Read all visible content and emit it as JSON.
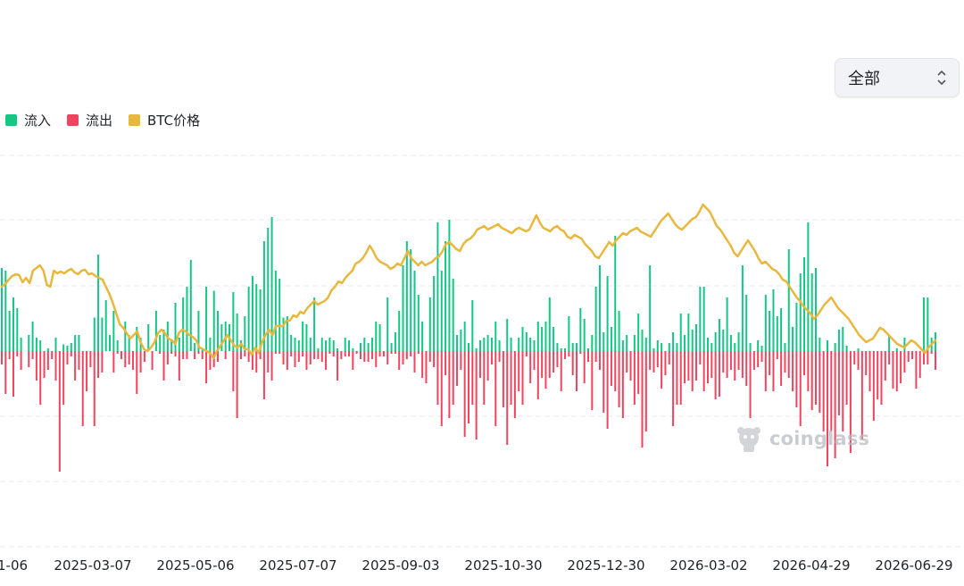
{
  "selector": {
    "value": "全部"
  },
  "legend": [
    {
      "label": "流入",
      "color": "#14c784"
    },
    {
      "label": "流出",
      "color": "#f0455f"
    },
    {
      "label": "BTC价格",
      "color": "#e8b73d"
    }
  ],
  "watermark": {
    "text": "coinglass"
  },
  "colors": {
    "inflow": "#14c784",
    "outflow": "#f0455f",
    "price": "#e8b73d",
    "grid": "#e6e8eb"
  },
  "chart_data": {
    "type": "bar",
    "grid": true,
    "legend_position": "top-left",
    "x_tick_labels": [
      "1-06",
      "2025-03-07",
      "2025-05-06",
      "2025-07-07",
      "2025-09-03",
      "2025-10-30",
      "2025-12-30",
      "2026-03-02",
      "2026-04-29",
      "2026-06-29"
    ],
    "series": [
      {
        "name": "流入",
        "kind": "bar",
        "values": [
          62,
          60,
          30,
          40,
          32,
          10,
          0,
          12,
          22,
          10,
          8,
          0,
          2,
          0,
          10,
          0,
          5,
          4,
          6,
          12,
          12,
          0,
          0,
          0,
          25,
          72,
          25,
          38,
          12,
          30,
          8,
          0,
          22,
          12,
          0,
          18,
          10,
          0,
          20,
          0,
          30,
          12,
          16,
          22,
          8,
          36,
          10,
          40,
          48,
          68,
          6,
          30,
          2,
          48,
          10,
          45,
          30,
          20,
          22,
          20,
          44,
          28,
          8,
          26,
          48,
          56,
          50,
          46,
          82,
          92,
          100,
          60,
          54,
          25,
          26,
          12,
          10,
          8,
          22,
          20,
          10,
          40,
          2,
          10,
          8,
          10,
          8,
          2,
          0,
          10,
          8,
          2,
          0,
          6,
          10,
          6,
          10,
          22,
          20,
          0,
          40,
          6,
          14,
          30,
          64,
          82,
          76,
          60,
          42,
          22,
          0,
          40,
          56,
          96,
          60,
          82,
          98,
          54,
          12,
          16,
          22,
          6,
          38,
          2,
          8,
          10,
          12,
          10,
          22,
          8,
          0,
          24,
          10,
          0,
          10,
          18,
          14,
          10,
          8,
          22,
          18,
          22,
          40,
          18,
          6,
          2,
          2,
          26,
          6,
          6,
          32,
          24,
          2,
          12,
          48,
          64,
          14,
          56,
          18,
          86,
          30,
          8,
          12,
          0,
          12,
          28,
          16,
          10,
          64,
          2,
          8,
          6,
          0,
          6,
          14,
          6,
          28,
          12,
          28,
          16,
          20,
          48,
          48,
          10,
          6,
          14,
          24,
          16,
          40,
          12,
          6,
          14,
          64,
          42,
          6,
          0,
          8,
          4,
          42,
          30,
          46,
          26,
          32,
          6,
          76,
          18,
          36,
          58,
          70,
          96,
          58,
          62,
          10,
          0,
          8,
          0,
          6,
          16,
          18,
          4,
          0,
          0,
          2,
          0,
          0,
          0,
          0,
          0,
          0,
          0,
          12,
          0,
          2,
          0,
          10,
          0,
          0,
          0,
          0,
          40,
          40,
          10,
          14
        ]
      },
      {
        "name": "流出",
        "kind": "bar",
        "values": [
          -10,
          -32,
          -6,
          -34,
          -4,
          -14,
          0,
          -12,
          -6,
          -22,
          -40,
          -20,
          -14,
          -6,
          -22,
          -90,
          -40,
          -10,
          -4,
          -22,
          -14,
          -56,
          -30,
          -12,
          -56,
          -20,
          -16,
          0,
          0,
          -16,
          -2,
          -6,
          -12,
          -10,
          -14,
          -32,
          -16,
          -8,
          0,
          -14,
          0,
          -2,
          -22,
          -10,
          -2,
          -4,
          -22,
          -6,
          -6,
          0,
          -6,
          -2,
          -6,
          -24,
          -14,
          -12,
          -8,
          0,
          -6,
          0,
          -30,
          -50,
          -6,
          -4,
          -8,
          -14,
          -16,
          -6,
          -36,
          -16,
          -22,
          -2,
          -2,
          -10,
          -14,
          -4,
          -12,
          -8,
          -4,
          -14,
          -10,
          -6,
          -6,
          -8,
          -14,
          -2,
          -4,
          -22,
          -6,
          -4,
          -4,
          -14,
          -2,
          -6,
          -8,
          -8,
          -6,
          -12,
          -4,
          -4,
          -10,
          -2,
          -2,
          -14,
          -10,
          -6,
          -4,
          -16,
          -2,
          -20,
          -24,
          -8,
          -12,
          -40,
          -56,
          -18,
          -50,
          -40,
          -26,
          -14,
          -64,
          -54,
          -40,
          -66,
          -20,
          -40,
          -22,
          -10,
          -56,
          -8,
          -42,
          -70,
          -40,
          -50,
          -30,
          -40,
          -4,
          -24,
          -14,
          -36,
          -20,
          -28,
          -20,
          -16,
          -12,
          -30,
          -6,
          -4,
          -18,
          -30,
          -2,
          -24,
          -8,
          -44,
          -8,
          -14,
          -46,
          -58,
          -26,
          -30,
          -42,
          -50,
          -16,
          -22,
          -40,
          -32,
          -72,
          -60,
          -14,
          -16,
          -12,
          -28,
          -18,
          -10,
          -56,
          -40,
          -40,
          -24,
          -22,
          -30,
          -22,
          -10,
          -30,
          -24,
          -20,
          -36,
          -34,
          -16,
          -20,
          -14,
          -22,
          -14,
          -20,
          -26,
          -50,
          -14,
          -12,
          -8,
          -30,
          -18,
          -30,
          -6,
          -26,
          -16,
          -20,
          -30,
          -42,
          -56,
          -18,
          -30,
          -44,
          -40,
          -46,
          -60,
          -86,
          -60,
          -80,
          -48,
          -60,
          -40,
          -76,
          -10,
          -14,
          -66,
          -18,
          -30,
          -52,
          -36,
          -40,
          -22,
          -10,
          -28,
          -30,
          -24,
          -16,
          -8,
          -6,
          -28,
          -20,
          -10,
          -10,
          -2,
          -14,
          -32,
          -32,
          -50,
          -30,
          -26,
          -10,
          -8,
          -16,
          -66,
          -52,
          -14,
          -10
        ]
      },
      {
        "name": "BTC价格",
        "kind": "line",
        "values": [
          72,
          75,
          80,
          84,
          86,
          85,
          77,
          82,
          76,
          90,
          93,
          96,
          90,
          74,
          72,
          90,
          87,
          89,
          87,
          90,
          92,
          88,
          86,
          90,
          91,
          86,
          87,
          84,
          82,
          80,
          72,
          64,
          54,
          42,
          30,
          26,
          20,
          14,
          18,
          22,
          10,
          2,
          0,
          4,
          10,
          20,
          24,
          20,
          14,
          12,
          8,
          20,
          24,
          22,
          18,
          16,
          12,
          4,
          2,
          0,
          -2,
          -8,
          0,
          6,
          12,
          18,
          12,
          6,
          4,
          8,
          2,
          2,
          -4,
          4,
          -2,
          10,
          18,
          24,
          18,
          28,
          28,
          28,
          34,
          34,
          40,
          38,
          44,
          42,
          48,
          52,
          56,
          52,
          54,
          56,
          60,
          68,
          72,
          78,
          76,
          82,
          86,
          90,
          98,
          100,
          104,
          110,
          118,
          112,
          104,
          100,
          98,
          96,
          92,
          94,
          98,
          96,
          104,
          112,
          104,
          100,
          96,
          100,
          96,
          98,
          100,
          104,
          106,
          112,
          120,
          122,
          118,
          114,
          112,
          120,
          124,
          126,
          130,
          136,
          138,
          140,
          136,
          138,
          140,
          142,
          138,
          136,
          134,
          132,
          136,
          138,
          136,
          134,
          136,
          144,
          152,
          144,
          138,
          136,
          134,
          138,
          140,
          136,
          134,
          128,
          126,
          130,
          128,
          126,
          120,
          116,
          112,
          106,
          104,
          110,
          116,
          122,
          118,
          124,
          128,
          132,
          130,
          134,
          136,
          138,
          134,
          132,
          130,
          128,
          134,
          140,
          146,
          150,
          154,
          148,
          142,
          138,
          136,
          140,
          144,
          148,
          150,
          156,
          164,
          160,
          156,
          148,
          140,
          136,
          130,
          124,
          118,
          110,
          106,
          112,
          118,
          124,
          118,
          112,
          104,
          98,
          100,
          96,
          92,
          90,
          86,
          80,
          78,
          72,
          66,
          60,
          56,
          50,
          46,
          42,
          36,
          40,
          46,
          52,
          56,
          60,
          54,
          48,
          44,
          40,
          36,
          30,
          24,
          18,
          14,
          10,
          12,
          14,
          20,
          26,
          24,
          20,
          16,
          12,
          8,
          6,
          4,
          8,
          12,
          10,
          6,
          2,
          -2,
          4,
          8,
          12
        ]
      }
    ]
  }
}
